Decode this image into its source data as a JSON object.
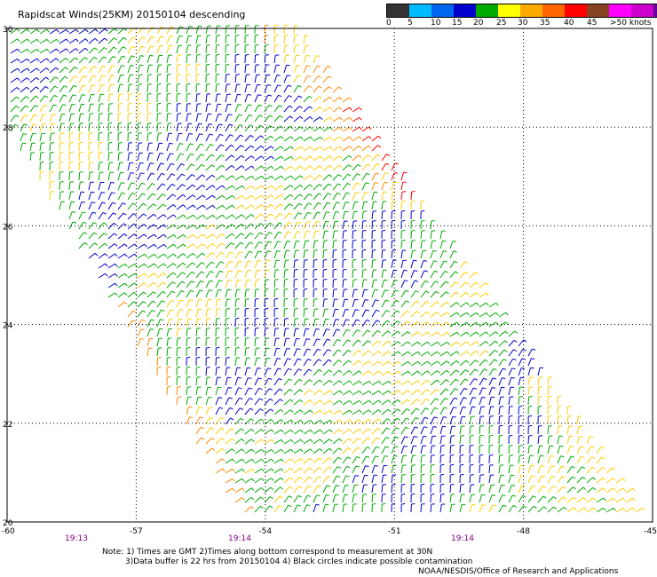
{
  "title": "Rapidscat Winds(25KM) 20150104 descending",
  "legend": {
    "labels": [
      "0",
      "5",
      "10",
      "15",
      "20",
      "25",
      "30",
      "35",
      "40",
      "45",
      ">50 knots"
    ],
    "colors": [
      "#333333",
      "#00bbff",
      "#0066ee",
      "#0000cc",
      "#00aa00",
      "#ffff00",
      "#ffaa00",
      "#ff6600",
      "#ff0000",
      "#884422",
      "#ff00ff",
      "#cc00cc",
      "#660099"
    ]
  },
  "axes": {
    "lon_ticks": [
      "-60",
      "-57",
      "-54",
      "-51",
      "-48",
      "-45"
    ],
    "lat_ticks": [
      "30",
      "28",
      "26",
      "24",
      "22",
      "20"
    ],
    "lon_range": [
      -60,
      -45
    ],
    "lat_range": [
      20,
      30
    ]
  },
  "times": [
    "19:13",
    "19:14",
    "19:14"
  ],
  "notes": {
    "line1": "Note: 1) Times are GMT 2)Times along bottom correspond to measurement at 30N",
    "line2": "3)Data buffer is 22 hrs from 20150104 4) Black circles indicate possible contamination",
    "credit": "NOAA/NESDIS/Office of Research and Applications"
  },
  "colors": {
    "grid": "#000000",
    "time_label": "#800080",
    "barb_low": "#0000cc",
    "barb_mid": "#00aa00",
    "barb_high": "#ffcc00",
    "barb_higher": "#ff8800",
    "barb_top": "#ff0000"
  }
}
